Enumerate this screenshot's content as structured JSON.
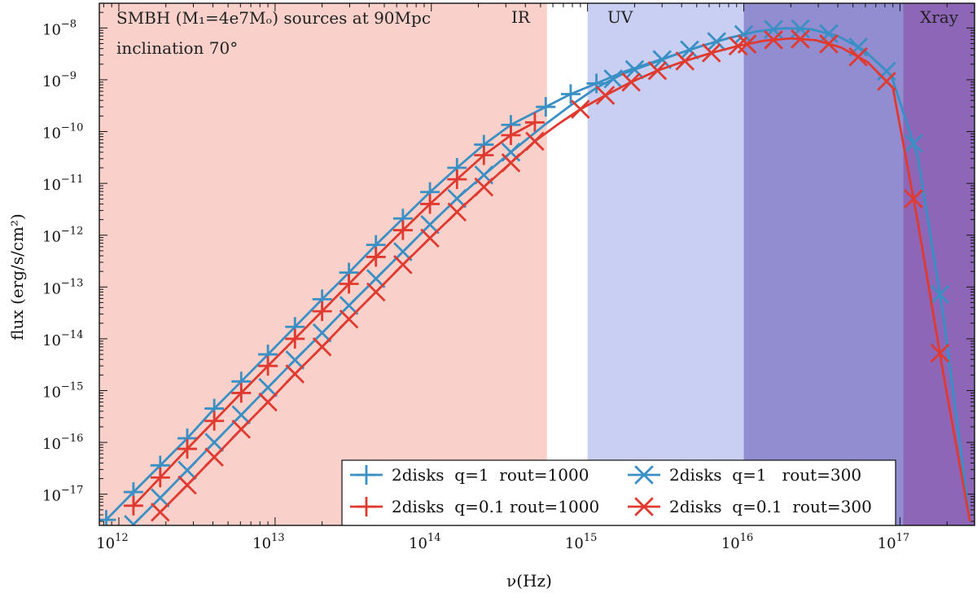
{
  "chart_data": {
    "type": "line",
    "title": "",
    "xlabel": "ν(Hz)",
    "ylabel": "flux (erg/s/cm²)",
    "xscale": "log",
    "yscale": "log",
    "xlim": [
      750000000000.0,
      3e+17
    ],
    "ylim": [
      2.5e-18,
      3e-08
    ],
    "x_ticks": [
      {
        "value": 1000000000000.0,
        "base": "10",
        "exp": "12"
      },
      {
        "value": 10000000000000.0,
        "base": "10",
        "exp": "13"
      },
      {
        "value": 100000000000000.0,
        "base": "10",
        "exp": "14"
      },
      {
        "value": 1000000000000000.0,
        "base": "10",
        "exp": "15"
      },
      {
        "value": 1e+16,
        "base": "10",
        "exp": "16"
      },
      {
        "value": 1e+17,
        "base": "10",
        "exp": "17"
      }
    ],
    "y_ticks": [
      {
        "value": 1e-17,
        "base": "10",
        "exp": "−17"
      },
      {
        "value": 1e-16,
        "base": "10",
        "exp": "−16"
      },
      {
        "value": 1e-15,
        "base": "10",
        "exp": "−15"
      },
      {
        "value": 1e-14,
        "base": "10",
        "exp": "−14"
      },
      {
        "value": 1e-13,
        "base": "10",
        "exp": "−13"
      },
      {
        "value": 1e-12,
        "base": "10",
        "exp": "−12"
      },
      {
        "value": 1e-11,
        "base": "10",
        "exp": "−11"
      },
      {
        "value": 1e-10,
        "base": "10",
        "exp": "−10"
      },
      {
        "value": 1e-09,
        "base": "10",
        "exp": "−9"
      },
      {
        "value": 1e-08,
        "base": "10",
        "exp": "−8"
      }
    ],
    "bands": [
      {
        "label": "IR",
        "from": 750000000000.0,
        "to": 550000000000000.0,
        "color": "#f8c9c1",
        "opacity": 0.85
      },
      {
        "label": "UV",
        "from": 1000000000000000.0,
        "to": 1e+16,
        "color": "#bcc3ef",
        "opacity": 0.8
      },
      {
        "label": "",
        "from": 1e+16,
        "to": 1.05e+17,
        "color": "#8c86cf",
        "opacity": 0.95
      },
      {
        "label": "Xray",
        "from": 1.05e+17,
        "to": 3e+17,
        "color": "#8e66b8",
        "opacity": 1.0
      }
    ],
    "annotations": {
      "line1": "SMBH (M₁=4e7Mₒ) sources at 90Mpc",
      "line2": "inclination 70°"
    },
    "series": [
      {
        "name": "2disks  q=1  rout=1000",
        "color": "#3a8fc4",
        "marker": "plus",
        "x": [
          830000000000.0,
          1240000000000.0,
          1840000000000.0,
          2740000000000.0,
          4080000000000.0,
          6070000000000.0,
          9000000000000.0,
          13400000000000.0,
          20000000000000.0,
          29700000000000.0,
          44200000000000.0,
          65800000000000.0,
          98000000000000.0,
          146000000000000.0,
          217000000000000.0,
          323000000000000.0,
          540000000000000.0,
          780000000000000.0,
          1140000000000000.0,
          1680000000000000.0,
          2500000000000000.0,
          3700000000000000.0,
          5500000000000000.0,
          8200000000000000.0,
          1.22e+16,
          1.8e+16,
          2.7e+16,
          4e+16,
          5.9e+16,
          8.8e+16,
          1.3e+17,
          1.9e+17,
          2.8e+17
        ],
        "y": [
          3.2e-18,
          1.1e-17,
          3.6e-17,
          1.2e-16,
          4.5e-16,
          1.5e-15,
          5e-15,
          1.7e-14,
          5.8e-14,
          1.9e-13,
          6.5e-13,
          2.1e-12,
          6.8e-12,
          2e-11,
          5.6e-11,
          1.35e-10,
          3e-10,
          5.3e-10,
          8.5e-10,
          1.4e-09,
          2.1e-09,
          3.1e-09,
          4.6e-09,
          6.5e-09,
          8.6e-09,
          9.9e-09,
          9.5e-09,
          7e-09,
          3.7e-09,
          1.2e-09,
          3.3e-11,
          2.6e-14,
          3e-18
        ],
        "markers_x": [
          830000000000.0,
          1240000000000.0,
          1840000000000.0,
          2740000000000.0,
          4080000000000.0,
          6070000000000.0,
          9000000000000.0,
          13400000000000.0,
          20000000000000.0,
          29700000000000.0,
          44200000000000.0,
          65800000000000.0,
          98000000000000.0,
          146000000000000.0,
          217000000000000.0,
          323000000000000.0,
          540000000000000.0,
          780000000000000.0,
          1140000000000000.0
        ]
      },
      {
        "name": "2disks  q=0.1 rout=1000",
        "color": "#e03a30",
        "marker": "plus",
        "x": [
          1240000000000.0,
          1840000000000.0,
          2740000000000.0,
          4080000000000.0,
          6070000000000.0,
          9000000000000.0,
          13400000000000.0,
          20000000000000.0,
          29700000000000.0,
          44200000000000.0,
          65800000000000.0,
          98000000000000.0,
          146000000000000.0,
          217000000000000.0,
          323000000000000.0,
          460000000000000.0
        ],
        "y": [
          6e-18,
          2.1e-17,
          7.5e-17,
          2.6e-16,
          9e-16,
          3e-15,
          1e-14,
          3.4e-14,
          1.15e-13,
          3.8e-13,
          1.25e-12,
          4e-12,
          1.2e-11,
          3.5e-11,
          8.5e-11,
          1.5e-10
        ],
        "markers_x": [
          1240000000000.0,
          1840000000000.0,
          2740000000000.0,
          4080000000000.0,
          6070000000000.0,
          9000000000000.0,
          13400000000000.0,
          20000000000000.0,
          29700000000000.0,
          44200000000000.0,
          65800000000000.0,
          98000000000000.0,
          146000000000000.0,
          217000000000000.0,
          323000000000000.0,
          460000000000000.0
        ]
      },
      {
        "name": "2disks  q=1   rout=300",
        "color": "#3a8fc4",
        "marker": "x",
        "x": [
          1240000000000.0,
          1840000000000.0,
          2740000000000.0,
          4080000000000.0,
          6070000000000.0,
          9000000000000.0,
          13400000000000.0,
          20000000000000.0,
          29700000000000.0,
          44200000000000.0,
          65800000000000.0,
          98000000000000.0,
          146000000000000.0,
          217000000000000.0,
          323000000000000.0,
          540000000000000.0,
          780000000000000.0,
          1140000000000000.0,
          1680000000000000.0,
          2500000000000000.0,
          3700000000000000.0,
          5500000000000000.0,
          8200000000000000.0,
          1.22e+16,
          1.8e+16,
          2.7e+16,
          4e+16,
          5.9e+16,
          8.8e+16,
          1.3e+17,
          1.9e+17,
          2.8e+17
        ],
        "y": [
          2.6e-18,
          8.5e-18,
          2.9e-17,
          1e-16,
          3.4e-16,
          1.15e-15,
          3.9e-15,
          1.3e-14,
          4.4e-14,
          1.45e-13,
          4.8e-13,
          1.6e-12,
          5.1e-12,
          1.45e-11,
          4e-11,
          1.4e-10,
          3.2e-10,
          7e-10,
          1.3e-09,
          2e-09,
          3.1e-09,
          4.6e-09,
          6.5e-09,
          8.6e-09,
          9.9e-09,
          9.5e-09,
          7e-09,
          3.7e-09,
          1.2e-09,
          3.3e-11,
          2.6e-14,
          3e-18
        ],
        "markers_x": [
          1240000000000.0,
          1840000000000.0,
          2740000000000.0,
          4080000000000.0,
          6070000000000.0,
          9000000000000.0,
          13400000000000.0,
          20000000000000.0,
          29700000000000.0,
          44200000000000.0,
          65800000000000.0,
          98000000000000.0,
          146000000000000.0,
          217000000000000.0,
          323000000000000.0,
          1460000000000000.0,
          2000000000000000.0,
          3000000000000000.0,
          4500000000000000.0,
          6700000000000000.0,
          1e+16,
          1.55e+16,
          2.3e+16,
          3.5e+16,
          5.4e+16,
          8.2e+16,
          1.22e+17,
          1.8e+17
        ]
      },
      {
        "name": "2disks  q=0.1  rout=300",
        "color": "#e03a30",
        "marker": "x",
        "x": [
          1840000000000.0,
          2740000000000.0,
          4080000000000.0,
          6070000000000.0,
          9000000000000.0,
          13400000000000.0,
          20000000000000.0,
          29700000000000.0,
          44200000000000.0,
          65800000000000.0,
          98000000000000.0,
          146000000000000.0,
          217000000000000.0,
          323000000000000.0,
          460000000000000.0,
          650000000000000.0,
          900000000000000.0,
          1300000000000000.0,
          1900000000000000.0,
          2800000000000000.0,
          4200000000000000.0,
          6200000000000000.0,
          9200000000000000.0,
          1.36e+16,
          2e+16,
          2.9e+16,
          4.2e+16,
          6.2e+16,
          9e+16,
          1.3e+17,
          1.9e+17,
          2.8e+17
        ],
        "y": [
          4.5e-18,
          1.5e-17,
          5.2e-17,
          1.8e-16,
          6e-16,
          2.1e-15,
          7e-15,
          2.4e-14,
          8e-14,
          2.7e-13,
          8.8e-13,
          2.8e-12,
          8.5e-12,
          2.5e-11,
          6.5e-11,
          1.4e-10,
          2.7e-10,
          5e-10,
          9e-10,
          1.5e-09,
          2.3e-09,
          3.3e-09,
          4.5e-09,
          5.7e-09,
          6.3e-09,
          5.8e-09,
          4.2e-09,
          2.2e-09,
          7e-10,
          1.8e-12,
          2e-15,
          3e-18
        ],
        "markers_x": [
          1840000000000.0,
          2740000000000.0,
          4080000000000.0,
          6070000000000.0,
          9000000000000.0,
          13400000000000.0,
          20000000000000.0,
          29700000000000.0,
          44200000000000.0,
          65800000000000.0,
          98000000000000.0,
          146000000000000.0,
          217000000000000.0,
          323000000000000.0,
          460000000000000.0,
          900000000000000.0,
          1300000000000000.0,
          1900000000000000.0,
          2800000000000000.0,
          4200000000000000.0,
          6200000000000000.0,
          9200000000000000.0,
          1.05e+16,
          1.55e+16,
          2.3e+16,
          3.5e+16,
          5.4e+16,
          8.2e+16,
          1.22e+17,
          1.8e+17
        ]
      }
    ],
    "legend": {
      "placement": "lower-right",
      "columns": 2
    }
  }
}
